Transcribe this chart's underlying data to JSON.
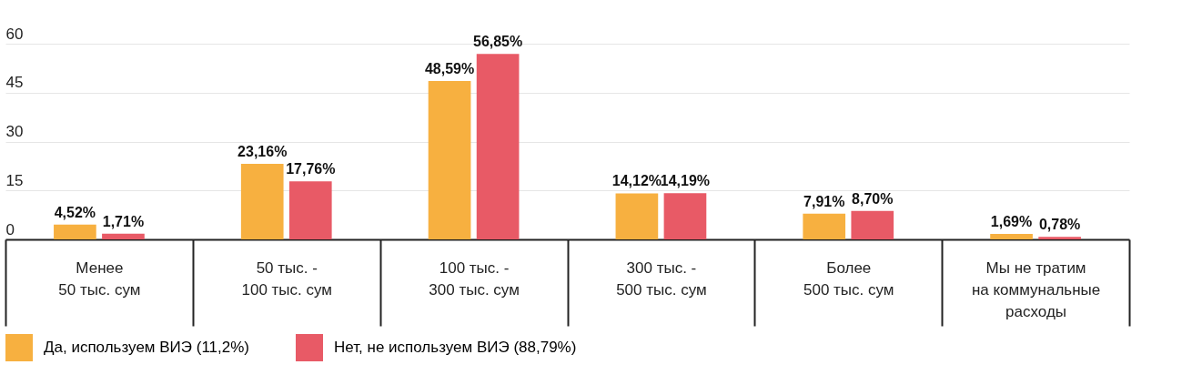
{
  "chart_data": {
    "type": "bar",
    "categories": [
      "Менее\n50 тыс. сум",
      "50 тыс. -\n100 тыс. сум",
      "100 тыс. -\n300 тыс. сум",
      "300 тыс. -\n500 тыс. сум",
      "Более\n500 тыс. сум",
      "Мы не тратим\nна коммунальные\nрасходы"
    ],
    "series": [
      {
        "name": "Да, используем ВИЭ (11,2%)",
        "color": "#f7b040",
        "values": [
          4.52,
          23.16,
          48.59,
          14.12,
          7.91,
          1.69
        ],
        "value_labels": [
          "4,52%",
          "23,16%",
          "48,59%",
          "14,12%",
          "7,91%",
          "1,69%"
        ]
      },
      {
        "name": "Нет, не используем ВИЭ (88,79%)",
        "color": "#e85a66",
        "values": [
          1.71,
          17.76,
          56.85,
          14.19,
          8.7,
          0.78
        ],
        "value_labels": [
          "1,71%",
          "17,76%",
          "56,85%",
          "14,19%",
          "8,70%",
          "0,78%"
        ]
      }
    ],
    "ylim": [
      0,
      60
    ],
    "yticks": [
      0,
      15,
      30,
      45,
      60
    ],
    "grid": "y",
    "legend": "bottom"
  }
}
